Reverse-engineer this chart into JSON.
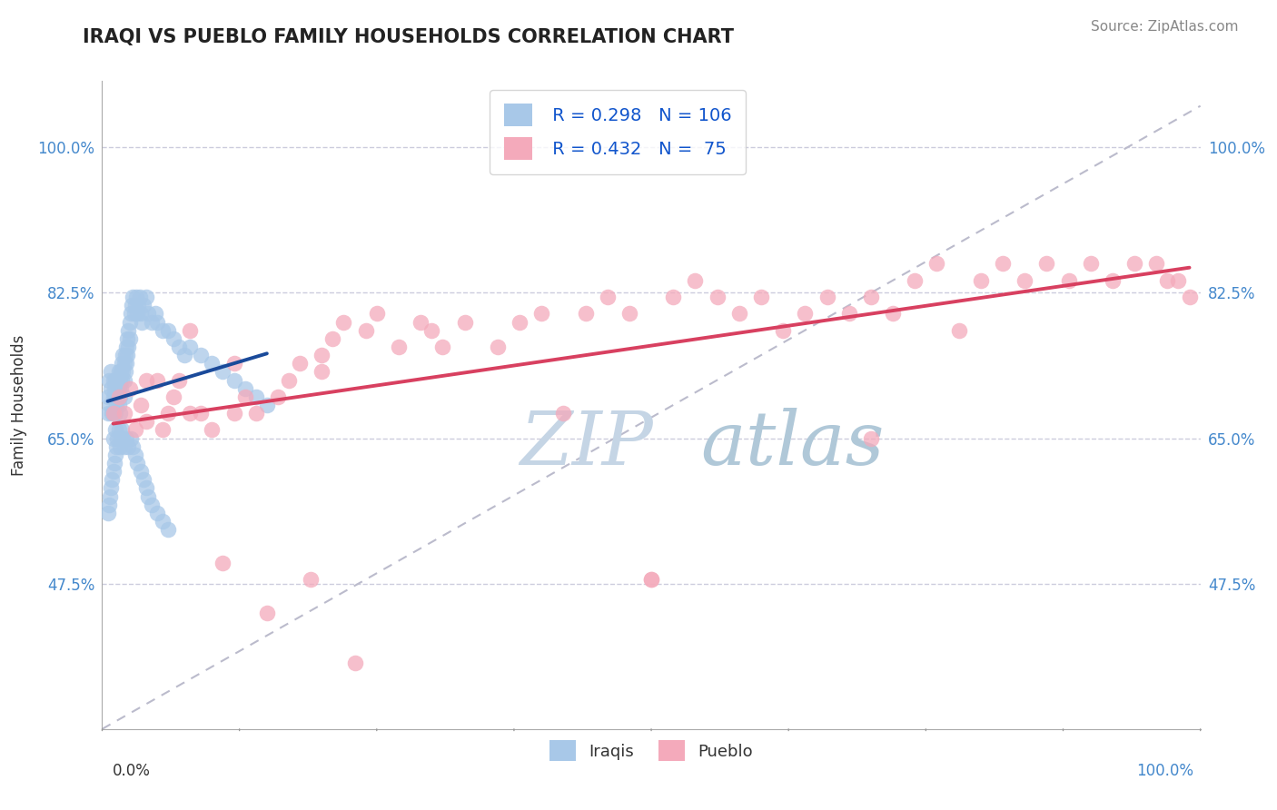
{
  "title": "IRAQI VS PUEBLO FAMILY HOUSEHOLDS CORRELATION CHART",
  "source": "Source: ZipAtlas.com",
  "ylabel": "Family Households",
  "ytick_labels": [
    "47.5%",
    "65.0%",
    "82.5%",
    "100.0%"
  ],
  "ytick_values": [
    0.475,
    0.65,
    0.825,
    1.0
  ],
  "xlim": [
    0.0,
    1.0
  ],
  "ylim": [
    0.3,
    1.08
  ],
  "iraqis_R": 0.298,
  "iraqis_N": 106,
  "pueblo_R": 0.432,
  "pueblo_N": 75,
  "legend_labels": [
    "Iraqis",
    "Pueblo"
  ],
  "iraqi_color": "#A8C8E8",
  "pueblo_color": "#F4AABB",
  "iraqi_line_color": "#1A4A9A",
  "pueblo_line_color": "#D84060",
  "ref_line_color": "#BBBBCC",
  "watermark_zip": "ZIP",
  "watermark_atlas": "atlas",
  "watermark_color_zip": "#C5D5E5",
  "watermark_color_atlas": "#B0C8D8",
  "background_color": "#FFFFFF",
  "title_color": "#222222",
  "title_fontsize": 15,
  "source_color": "#888888",
  "ylabel_color": "#333333",
  "tick_color_y": "#4488CC",
  "grid_color": "#CCCCDD",
  "legend_text_color": "#1155CC",
  "legend_N_color": "#1155CC",
  "bottom_legend_color": "#333333",
  "iraqi_x": [
    0.005,
    0.005,
    0.006,
    0.007,
    0.008,
    0.008,
    0.009,
    0.01,
    0.01,
    0.01,
    0.01,
    0.011,
    0.011,
    0.012,
    0.012,
    0.012,
    0.012,
    0.013,
    0.013,
    0.014,
    0.014,
    0.015,
    0.015,
    0.015,
    0.016,
    0.016,
    0.016,
    0.017,
    0.017,
    0.018,
    0.018,
    0.019,
    0.019,
    0.02,
    0.02,
    0.02,
    0.021,
    0.021,
    0.022,
    0.022,
    0.023,
    0.023,
    0.024,
    0.024,
    0.025,
    0.025,
    0.026,
    0.027,
    0.028,
    0.029,
    0.03,
    0.031,
    0.032,
    0.033,
    0.034,
    0.035,
    0.036,
    0.038,
    0.04,
    0.042,
    0.045,
    0.048,
    0.05,
    0.055,
    0.06,
    0.065,
    0.07,
    0.075,
    0.08,
    0.09,
    0.1,
    0.11,
    0.12,
    0.13,
    0.14,
    0.15,
    0.005,
    0.006,
    0.007,
    0.008,
    0.009,
    0.01,
    0.011,
    0.012,
    0.013,
    0.014,
    0.015,
    0.016,
    0.017,
    0.018,
    0.019,
    0.02,
    0.022,
    0.024,
    0.026,
    0.028,
    0.03,
    0.032,
    0.035,
    0.038,
    0.04,
    0.042,
    0.045,
    0.05,
    0.055,
    0.06
  ],
  "iraqi_y": [
    0.68,
    0.7,
    0.72,
    0.69,
    0.71,
    0.73,
    0.68,
    0.7,
    0.72,
    0.68,
    0.65,
    0.71,
    0.68,
    0.72,
    0.7,
    0.68,
    0.66,
    0.71,
    0.69,
    0.72,
    0.7,
    0.73,
    0.71,
    0.69,
    0.72,
    0.7,
    0.68,
    0.73,
    0.71,
    0.74,
    0.72,
    0.75,
    0.73,
    0.74,
    0.72,
    0.7,
    0.75,
    0.73,
    0.76,
    0.74,
    0.77,
    0.75,
    0.78,
    0.76,
    0.79,
    0.77,
    0.8,
    0.81,
    0.82,
    0.8,
    0.81,
    0.82,
    0.8,
    0.81,
    0.82,
    0.8,
    0.79,
    0.81,
    0.82,
    0.8,
    0.79,
    0.8,
    0.79,
    0.78,
    0.78,
    0.77,
    0.76,
    0.75,
    0.76,
    0.75,
    0.74,
    0.73,
    0.72,
    0.71,
    0.7,
    0.69,
    0.56,
    0.57,
    0.58,
    0.59,
    0.6,
    0.61,
    0.62,
    0.63,
    0.64,
    0.65,
    0.66,
    0.64,
    0.65,
    0.66,
    0.65,
    0.64,
    0.65,
    0.64,
    0.65,
    0.64,
    0.63,
    0.62,
    0.61,
    0.6,
    0.59,
    0.58,
    0.57,
    0.56,
    0.55,
    0.54
  ],
  "pueblo_x": [
    0.01,
    0.015,
    0.02,
    0.025,
    0.03,
    0.035,
    0.04,
    0.05,
    0.055,
    0.06,
    0.065,
    0.07,
    0.08,
    0.09,
    0.1,
    0.11,
    0.12,
    0.13,
    0.14,
    0.15,
    0.16,
    0.17,
    0.18,
    0.19,
    0.2,
    0.21,
    0.22,
    0.23,
    0.24,
    0.25,
    0.27,
    0.29,
    0.31,
    0.33,
    0.36,
    0.38,
    0.4,
    0.42,
    0.44,
    0.46,
    0.48,
    0.5,
    0.52,
    0.54,
    0.56,
    0.58,
    0.6,
    0.62,
    0.64,
    0.66,
    0.68,
    0.7,
    0.72,
    0.74,
    0.76,
    0.78,
    0.8,
    0.82,
    0.84,
    0.86,
    0.88,
    0.9,
    0.92,
    0.94,
    0.96,
    0.97,
    0.98,
    0.99,
    0.04,
    0.08,
    0.12,
    0.2,
    0.3,
    0.5,
    0.7
  ],
  "pueblo_y": [
    0.68,
    0.7,
    0.68,
    0.71,
    0.66,
    0.69,
    0.67,
    0.72,
    0.66,
    0.68,
    0.7,
    0.72,
    0.68,
    0.68,
    0.66,
    0.5,
    0.68,
    0.7,
    0.68,
    0.44,
    0.7,
    0.72,
    0.74,
    0.48,
    0.75,
    0.77,
    0.79,
    0.38,
    0.78,
    0.8,
    0.76,
    0.79,
    0.76,
    0.79,
    0.76,
    0.79,
    0.8,
    0.68,
    0.8,
    0.82,
    0.8,
    0.48,
    0.82,
    0.84,
    0.82,
    0.8,
    0.82,
    0.78,
    0.8,
    0.82,
    0.8,
    0.82,
    0.8,
    0.84,
    0.86,
    0.78,
    0.84,
    0.86,
    0.84,
    0.86,
    0.84,
    0.86,
    0.84,
    0.86,
    0.86,
    0.84,
    0.84,
    0.82,
    0.72,
    0.78,
    0.74,
    0.73,
    0.78,
    0.48,
    0.65
  ]
}
